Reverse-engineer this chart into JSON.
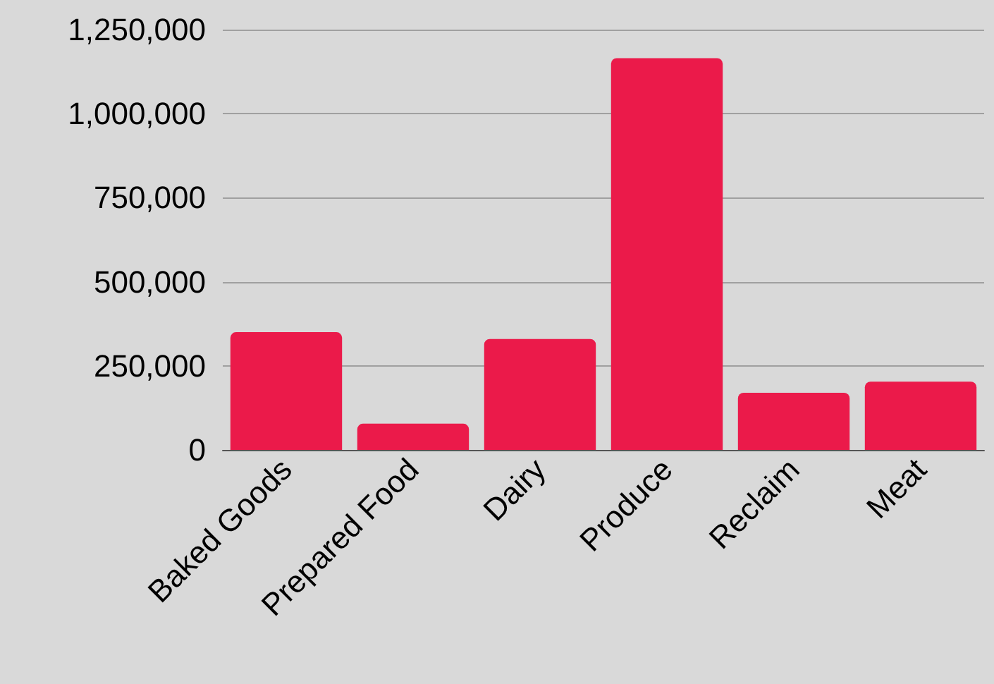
{
  "chart_data": {
    "type": "bar",
    "categories": [
      "Baked Goods",
      "Prepared Food",
      "Dairy",
      "Produce",
      "Reclaim",
      "Meat"
    ],
    "values": [
      350000,
      78000,
      330000,
      1165000,
      170000,
      203000
    ],
    "color": "#eb1a4a",
    "ylim": [
      0,
      1250000
    ],
    "yticks": [
      0,
      {
        "value": 250000,
        "label": "250,000"
      },
      {
        "value": 500000,
        "label": "500,000"
      },
      {
        "value": 750000,
        "label": "750,000"
      },
      {
        "value": 1000000,
        "label": "1,000,000"
      },
      {
        "value": 1250000,
        "label": "1,250,000"
      }
    ],
    "grid": "y"
  }
}
